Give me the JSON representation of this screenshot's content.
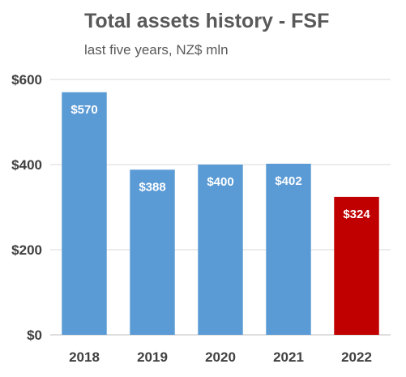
{
  "chart_data": {
    "type": "bar",
    "title": "Total assets history - FSF",
    "subtitle": "last five years, NZ$ mln",
    "categories": [
      "2018",
      "2019",
      "2020",
      "2021",
      "2022"
    ],
    "values": [
      570,
      388,
      400,
      402,
      324
    ],
    "data_labels": [
      "$570",
      "$388",
      "$400",
      "$402",
      "$324"
    ],
    "bar_colors": [
      "#5B9BD5",
      "#5B9BD5",
      "#5B9BD5",
      "#5B9BD5",
      "#C00000"
    ],
    "ylim": [
      0,
      600
    ],
    "yticks": [
      0,
      200,
      400,
      600
    ],
    "ytick_labels": [
      "$0",
      "$200",
      "$400",
      "$600"
    ],
    "grid": true,
    "legend": "none",
    "xlabel": "",
    "ylabel": ""
  }
}
